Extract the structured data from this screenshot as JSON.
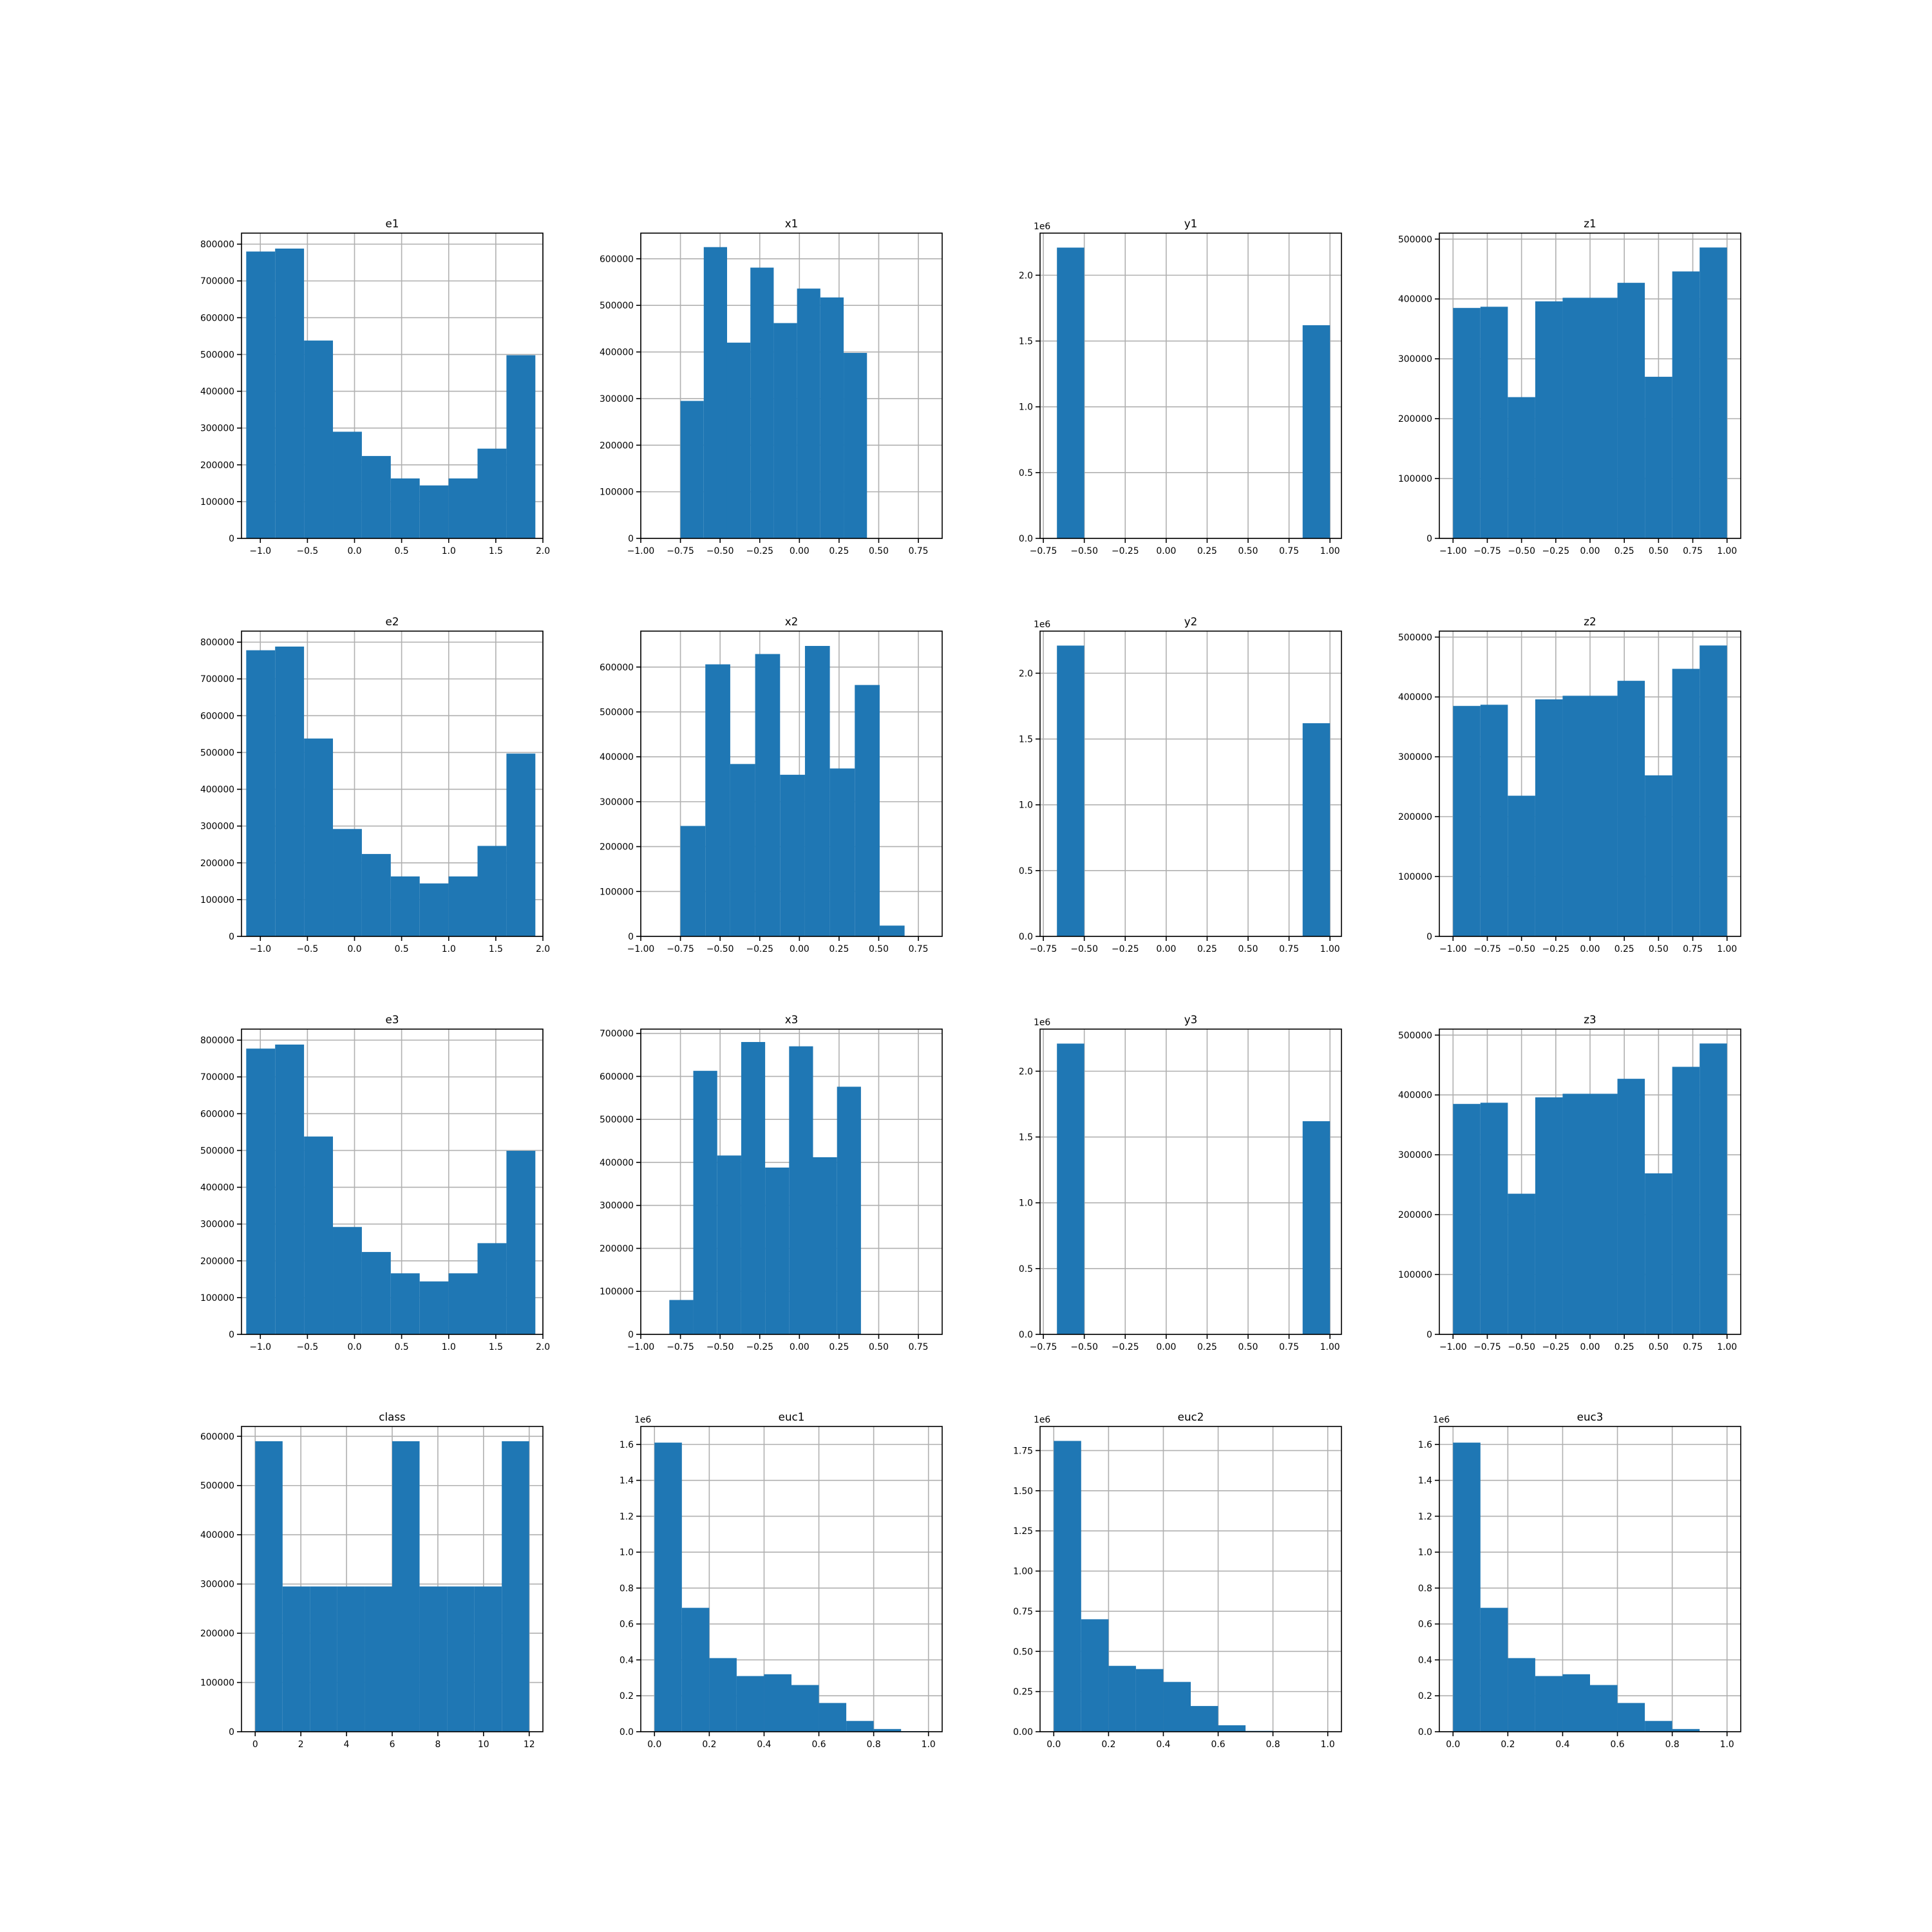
{
  "chart_data": [
    {
      "type": "bar",
      "title": "e1",
      "grid": true,
      "xlim": [
        -1.2,
        2.0
      ],
      "ylim": [
        0,
        830000
      ],
      "xticks": [
        -1.0,
        -0.5,
        0.0,
        0.5,
        1.0,
        1.5,
        2.0
      ],
      "xtick_labels": [
        "−1.0",
        "−0.5",
        "0.0",
        "0.5",
        "1.0",
        "1.5",
        "2.0"
      ],
      "yticks": [
        0,
        100000,
        200000,
        300000,
        400000,
        500000,
        600000,
        700000,
        800000
      ],
      "ytick_labels": [
        "0",
        "100000",
        "200000",
        "300000",
        "400000",
        "500000",
        "600000",
        "700000",
        "800000"
      ],
      "offset": "",
      "bins": [
        -1.15,
        -0.843,
        -0.536,
        -0.229,
        0.078,
        0.385,
        0.692,
        0.999,
        1.306,
        1.613,
        1.92
      ],
      "counts": [
        780000,
        788000,
        538000,
        290000,
        224000,
        163000,
        144000,
        163000,
        244000,
        498000
      ]
    },
    {
      "type": "bar",
      "title": "x1",
      "grid": true,
      "xlim": [
        -1.0,
        0.9
      ],
      "ylim": [
        0,
        655000
      ],
      "xticks": [
        -1.0,
        -0.75,
        -0.5,
        -0.25,
        0.0,
        0.25,
        0.5,
        0.75
      ],
      "xtick_labels": [
        "−1.00",
        "−0.75",
        "−0.50",
        "−0.25",
        "0.00",
        "0.25",
        "0.50",
        "0.75"
      ],
      "yticks": [
        0,
        100000,
        200000,
        300000,
        400000,
        500000,
        600000
      ],
      "ytick_labels": [
        "0",
        "100000",
        "200000",
        "300000",
        "400000",
        "500000",
        "600000"
      ],
      "offset": "",
      "bins": [
        -0.75,
        -0.603,
        -0.456,
        -0.309,
        -0.162,
        -0.015,
        0.132,
        0.279,
        0.426,
        0.573,
        0.72
      ],
      "counts": [
        295000,
        625000,
        420000,
        581000,
        462000,
        536000,
        517000,
        398000,
        0,
        0
      ]
    },
    {
      "type": "bar",
      "title": "y1",
      "grid": true,
      "xlim": [
        -0.77,
        1.07
      ],
      "ylim": [
        0,
        2.32
      ],
      "xticks": [
        -0.75,
        -0.5,
        -0.25,
        0.0,
        0.25,
        0.5,
        0.75,
        1.0
      ],
      "xtick_labels": [
        "−0.75",
        "−0.50",
        "−0.25",
        "0.00",
        "0.25",
        "0.50",
        "0.75",
        "1.00"
      ],
      "yticks": [
        0.0,
        0.5,
        1.0,
        1.5,
        2.0
      ],
      "ytick_labels": [
        "0.0",
        "0.5",
        "1.0",
        "1.5",
        "2.0"
      ],
      "offset": "1e6",
      "bins": [
        -0.667,
        -0.5,
        -0.333,
        -0.167,
        0.0,
        0.167,
        0.333,
        0.5,
        0.667,
        0.833,
        1.0
      ],
      "counts": [
        2.21,
        0,
        0,
        0,
        0,
        0,
        0,
        0,
        0,
        1.62
      ]
    },
    {
      "type": "bar",
      "title": "z1",
      "grid": true,
      "xlim": [
        -1.1,
        1.1
      ],
      "ylim": [
        0,
        510000
      ],
      "xticks": [
        -1.0,
        -0.75,
        -0.5,
        -0.25,
        0.0,
        0.25,
        0.5,
        0.75,
        1.0
      ],
      "xtick_labels": [
        "−1.00",
        "−0.75",
        "−0.50",
        "−0.25",
        "0.00",
        "0.25",
        "0.50",
        "0.75",
        "1.00"
      ],
      "yticks": [
        0,
        100000,
        200000,
        300000,
        400000,
        500000
      ],
      "ytick_labels": [
        "0",
        "100000",
        "200000",
        "300000",
        "400000",
        "500000"
      ],
      "offset": "",
      "bins": [
        -1.0,
        -0.8,
        -0.6,
        -0.4,
        -0.2,
        0.0,
        0.2,
        0.4,
        0.6,
        0.8,
        1.0
      ],
      "counts": [
        385000,
        387000,
        236000,
        396000,
        402000,
        402000,
        427000,
        270000,
        446000,
        486000
      ]
    },
    {
      "type": "bar",
      "title": "e2",
      "grid": true,
      "xlim": [
        -1.2,
        2.0
      ],
      "ylim": [
        0,
        830000
      ],
      "xticks": [
        -1.0,
        -0.5,
        0.0,
        0.5,
        1.0,
        1.5,
        2.0
      ],
      "xtick_labels": [
        "−1.0",
        "−0.5",
        "0.0",
        "0.5",
        "1.0",
        "1.5",
        "2.0"
      ],
      "yticks": [
        0,
        100000,
        200000,
        300000,
        400000,
        500000,
        600000,
        700000,
        800000
      ],
      "ytick_labels": [
        "0",
        "100000",
        "200000",
        "300000",
        "400000",
        "500000",
        "600000",
        "700000",
        "800000"
      ],
      "offset": "",
      "bins": [
        -1.15,
        -0.843,
        -0.536,
        -0.229,
        0.078,
        0.385,
        0.692,
        0.999,
        1.306,
        1.613,
        1.92
      ],
      "counts": [
        778000,
        788000,
        538000,
        292000,
        224000,
        163000,
        144000,
        163000,
        246000,
        497000
      ]
    },
    {
      "type": "bar",
      "title": "x2",
      "grid": true,
      "xlim": [
        -1.0,
        0.9
      ],
      "ylim": [
        0,
        680000
      ],
      "xticks": [
        -1.0,
        -0.75,
        -0.5,
        -0.25,
        0.0,
        0.25,
        0.5,
        0.75
      ],
      "xtick_labels": [
        "−1.00",
        "−0.75",
        "−0.50",
        "−0.25",
        "0.00",
        "0.25",
        "0.50",
        "0.75"
      ],
      "yticks": [
        0,
        100000,
        200000,
        300000,
        400000,
        500000,
        600000
      ],
      "ytick_labels": [
        "0",
        "100000",
        "200000",
        "300000",
        "400000",
        "500000",
        "600000"
      ],
      "offset": "",
      "bins": [
        -0.75,
        -0.593,
        -0.436,
        -0.279,
        -0.122,
        0.035,
        0.192,
        0.349,
        0.506,
        0.663,
        0.82
      ],
      "counts": [
        246000,
        606000,
        384000,
        629000,
        360000,
        647000,
        374000,
        560000,
        24000,
        0
      ]
    },
    {
      "type": "bar",
      "title": "y2",
      "grid": true,
      "xlim": [
        -0.77,
        1.07
      ],
      "ylim": [
        0,
        2.32
      ],
      "xticks": [
        -0.75,
        -0.5,
        -0.25,
        0.0,
        0.25,
        0.5,
        0.75,
        1.0
      ],
      "xtick_labels": [
        "−0.75",
        "−0.50",
        "−0.25",
        "0.00",
        "0.25",
        "0.50",
        "0.75",
        "1.00"
      ],
      "yticks": [
        0.0,
        0.5,
        1.0,
        1.5,
        2.0
      ],
      "ytick_labels": [
        "0.0",
        "0.5",
        "1.0",
        "1.5",
        "2.0"
      ],
      "offset": "1e6",
      "bins": [
        -0.667,
        -0.5,
        -0.333,
        -0.167,
        0.0,
        0.167,
        0.333,
        0.5,
        0.667,
        0.833,
        1.0
      ],
      "counts": [
        2.21,
        0,
        0,
        0,
        0,
        0,
        0,
        0,
        0,
        1.62
      ]
    },
    {
      "type": "bar",
      "title": "z2",
      "grid": true,
      "xlim": [
        -1.1,
        1.1
      ],
      "ylim": [
        0,
        510000
      ],
      "xticks": [
        -1.0,
        -0.75,
        -0.5,
        -0.25,
        0.0,
        0.25,
        0.5,
        0.75,
        1.0
      ],
      "xtick_labels": [
        "−1.00",
        "−0.75",
        "−0.50",
        "−0.25",
        "0.00",
        "0.25",
        "0.50",
        "0.75",
        "1.00"
      ],
      "yticks": [
        0,
        100000,
        200000,
        300000,
        400000,
        500000
      ],
      "ytick_labels": [
        "0",
        "100000",
        "200000",
        "300000",
        "400000",
        "500000"
      ],
      "offset": "",
      "bins": [
        -1.0,
        -0.8,
        -0.6,
        -0.4,
        -0.2,
        0.0,
        0.2,
        0.4,
        0.6,
        0.8,
        1.0
      ],
      "counts": [
        385000,
        387000,
        235000,
        396000,
        402000,
        402000,
        427000,
        269000,
        447000,
        486000
      ]
    },
    {
      "type": "bar",
      "title": "e3",
      "grid": true,
      "xlim": [
        -1.2,
        2.0
      ],
      "ylim": [
        0,
        830000
      ],
      "xticks": [
        -1.0,
        -0.5,
        0.0,
        0.5,
        1.0,
        1.5,
        2.0
      ],
      "xtick_labels": [
        "−1.0",
        "−0.5",
        "0.0",
        "0.5",
        "1.0",
        "1.5",
        "2.0"
      ],
      "yticks": [
        0,
        100000,
        200000,
        300000,
        400000,
        500000,
        600000,
        700000,
        800000
      ],
      "ytick_labels": [
        "0",
        "100000",
        "200000",
        "300000",
        "400000",
        "500000",
        "600000",
        "700000",
        "800000"
      ],
      "offset": "",
      "bins": [
        -1.15,
        -0.843,
        -0.536,
        -0.229,
        0.078,
        0.385,
        0.692,
        0.999,
        1.306,
        1.613,
        1.92
      ],
      "counts": [
        777000,
        788000,
        538000,
        292000,
        224000,
        166000,
        144000,
        166000,
        248000,
        499000
      ]
    },
    {
      "type": "bar",
      "title": "x3",
      "grid": true,
      "xlim": [
        -1.0,
        0.9
      ],
      "ylim": [
        0,
        710000
      ],
      "xticks": [
        -1.0,
        -0.75,
        -0.5,
        -0.25,
        0.0,
        0.25,
        0.5,
        0.75
      ],
      "xtick_labels": [
        "−1.00",
        "−0.75",
        "−0.50",
        "−0.25",
        "0.00",
        "0.25",
        "0.50",
        "0.75"
      ],
      "yticks": [
        0,
        100000,
        200000,
        300000,
        400000,
        500000,
        600000,
        700000
      ],
      "ytick_labels": [
        "0",
        "100000",
        "200000",
        "300000",
        "400000",
        "500000",
        "600000",
        "700000"
      ],
      "offset": "",
      "bins": [
        -0.82,
        -0.669,
        -0.518,
        -0.367,
        -0.216,
        -0.065,
        0.086,
        0.237,
        0.388,
        0.539,
        0.69
      ],
      "counts": [
        80000,
        613000,
        416000,
        680000,
        388000,
        670000,
        412000,
        576000,
        0,
        0
      ]
    },
    {
      "type": "bar",
      "title": "y3",
      "grid": true,
      "xlim": [
        -0.77,
        1.07
      ],
      "ylim": [
        0,
        2.32
      ],
      "xticks": [
        -0.75,
        -0.5,
        -0.25,
        0.0,
        0.25,
        0.5,
        0.75,
        1.0
      ],
      "xtick_labels": [
        "−0.75",
        "−0.50",
        "−0.25",
        "0.00",
        "0.25",
        "0.50",
        "0.75",
        "1.00"
      ],
      "yticks": [
        0.0,
        0.5,
        1.0,
        1.5,
        2.0
      ],
      "ytick_labels": [
        "0.0",
        "0.5",
        "1.0",
        "1.5",
        "2.0"
      ],
      "offset": "1e6",
      "bins": [
        -0.667,
        -0.5,
        -0.333,
        -0.167,
        0.0,
        0.167,
        0.333,
        0.5,
        0.667,
        0.833,
        1.0
      ],
      "counts": [
        2.21,
        0,
        0,
        0,
        0,
        0,
        0,
        0,
        0,
        1.62
      ]
    },
    {
      "type": "bar",
      "title": "z3",
      "grid": true,
      "xlim": [
        -1.1,
        1.1
      ],
      "ylim": [
        0,
        510000
      ],
      "xticks": [
        -1.0,
        -0.75,
        -0.5,
        -0.25,
        0.0,
        0.25,
        0.5,
        0.75,
        1.0
      ],
      "xtick_labels": [
        "−1.00",
        "−0.75",
        "−0.50",
        "−0.25",
        "0.00",
        "0.25",
        "0.50",
        "0.75",
        "1.00"
      ],
      "yticks": [
        0,
        100000,
        200000,
        300000,
        400000,
        500000
      ],
      "ytick_labels": [
        "0",
        "100000",
        "200000",
        "300000",
        "400000",
        "500000"
      ],
      "offset": "",
      "bins": [
        -1.0,
        -0.8,
        -0.6,
        -0.4,
        -0.2,
        0.0,
        0.2,
        0.4,
        0.6,
        0.8,
        1.0
      ],
      "counts": [
        385000,
        387000,
        235000,
        396000,
        402000,
        402000,
        427000,
        269000,
        447000,
        486000
      ]
    },
    {
      "type": "bar",
      "title": "class",
      "grid": true,
      "xlim": [
        -0.6,
        12.6
      ],
      "ylim": [
        0,
        620000
      ],
      "xticks": [
        0,
        2,
        4,
        6,
        8,
        10,
        12
      ],
      "xtick_labels": [
        "0",
        "2",
        "4",
        "6",
        "8",
        "10",
        "12"
      ],
      "yticks": [
        0,
        100000,
        200000,
        300000,
        400000,
        500000,
        600000
      ],
      "ytick_labels": [
        "0",
        "100000",
        "200000",
        "300000",
        "400000",
        "500000",
        "600000"
      ],
      "offset": "",
      "bins": [
        0,
        1.2,
        2.4,
        3.6,
        4.8,
        6.0,
        7.2,
        8.4,
        9.6,
        10.8,
        12.0
      ],
      "counts": [
        590000,
        295000,
        295000,
        295000,
        295000,
        590000,
        295000,
        295000,
        295000,
        590000
      ]
    },
    {
      "type": "bar",
      "title": "euc1",
      "grid": true,
      "xlim": [
        -0.05,
        1.05
      ],
      "ylim": [
        0,
        1.7
      ],
      "xticks": [
        0.0,
        0.2,
        0.4,
        0.6,
        0.8,
        1.0
      ],
      "xtick_labels": [
        "0.0",
        "0.2",
        "0.4",
        "0.6",
        "0.8",
        "1.0"
      ],
      "yticks": [
        0.0,
        0.2,
        0.4,
        0.6,
        0.8,
        1.0,
        1.2,
        1.4,
        1.6
      ],
      "ytick_labels": [
        "0.0",
        "0.2",
        "0.4",
        "0.6",
        "0.8",
        "1.0",
        "1.2",
        "1.4",
        "1.6"
      ],
      "offset": "1e6",
      "bins": [
        0.0,
        0.1,
        0.2,
        0.3,
        0.4,
        0.5,
        0.6,
        0.7,
        0.8,
        0.9,
        1.0
      ],
      "counts": [
        1.61,
        0.69,
        0.41,
        0.31,
        0.32,
        0.26,
        0.16,
        0.06,
        0.015,
        0.003
      ]
    },
    {
      "type": "bar",
      "title": "euc2",
      "grid": true,
      "xlim": [
        -0.05,
        1.05
      ],
      "ylim": [
        0,
        1.9
      ],
      "xticks": [
        0.0,
        0.2,
        0.4,
        0.6,
        0.8,
        1.0
      ],
      "xtick_labels": [
        "0.0",
        "0.2",
        "0.4",
        "0.6",
        "0.8",
        "1.0"
      ],
      "yticks": [
        0.0,
        0.25,
        0.5,
        0.75,
        1.0,
        1.25,
        1.5,
        1.75
      ],
      "ytick_labels": [
        "0.00",
        "0.25",
        "0.50",
        "0.75",
        "1.00",
        "1.25",
        "1.50",
        "1.75"
      ],
      "offset": "1e6",
      "bins": [
        0.0,
        0.1,
        0.2,
        0.3,
        0.4,
        0.5,
        0.6,
        0.7,
        0.8,
        0.9,
        1.0
      ],
      "counts": [
        1.81,
        0.7,
        0.41,
        0.39,
        0.31,
        0.16,
        0.04,
        0.005,
        0.001,
        0.0
      ]
    },
    {
      "type": "bar",
      "title": "euc3",
      "grid": true,
      "xlim": [
        -0.05,
        1.05
      ],
      "ylim": [
        0,
        1.7
      ],
      "xticks": [
        0.0,
        0.2,
        0.4,
        0.6,
        0.8,
        1.0
      ],
      "xtick_labels": [
        "0.0",
        "0.2",
        "0.4",
        "0.6",
        "0.8",
        "1.0"
      ],
      "yticks": [
        0.0,
        0.2,
        0.4,
        0.6,
        0.8,
        1.0,
        1.2,
        1.4,
        1.6
      ],
      "ytick_labels": [
        "0.0",
        "0.2",
        "0.4",
        "0.6",
        "0.8",
        "1.0",
        "1.2",
        "1.4",
        "1.6"
      ],
      "offset": "1e6",
      "bins": [
        0.0,
        0.1,
        0.2,
        0.3,
        0.4,
        0.5,
        0.6,
        0.7,
        0.8,
        0.9,
        1.0
      ],
      "counts": [
        1.61,
        0.69,
        0.41,
        0.31,
        0.32,
        0.26,
        0.16,
        0.06,
        0.015,
        0.003
      ]
    }
  ]
}
